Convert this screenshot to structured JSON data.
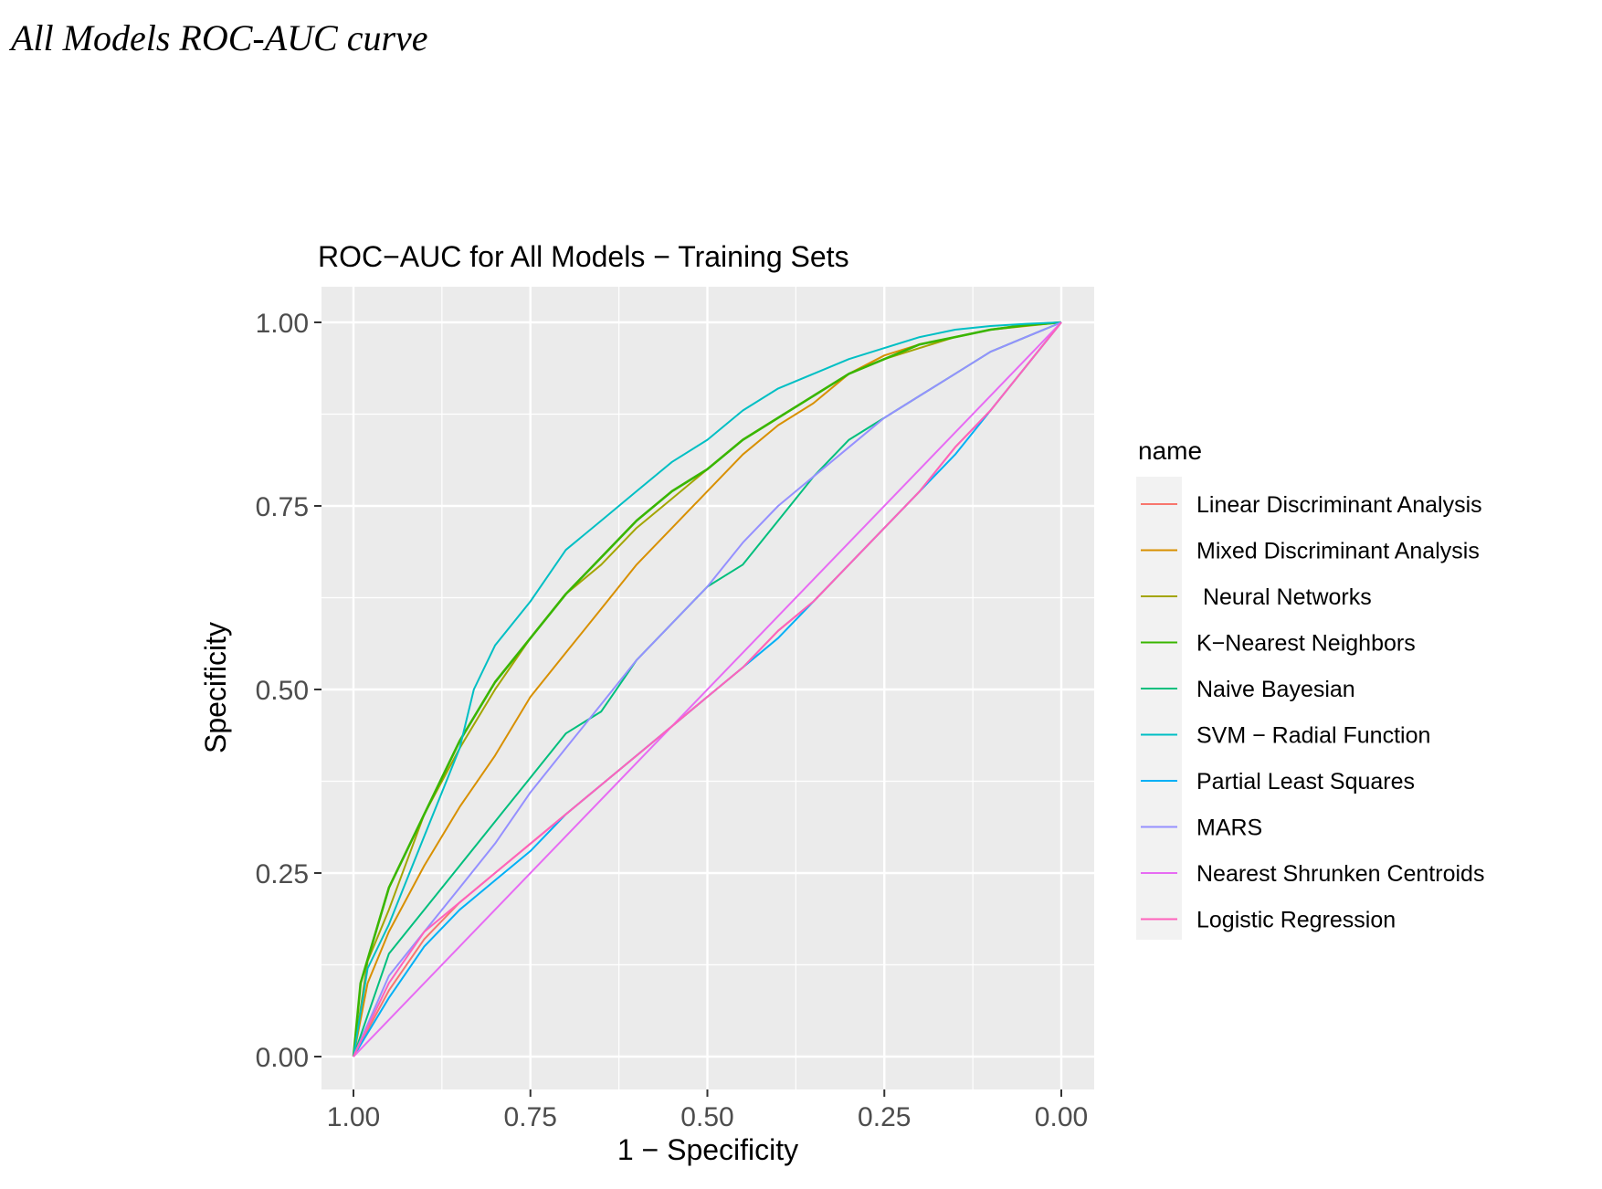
{
  "caption": "All Models ROC-AUC curve",
  "chart_data": {
    "type": "line",
    "title": "ROC−AUC for All Models − Training Sets",
    "xlabel": "1 − Specificity",
    "ylabel": "Specificity",
    "xlim": [
      1.0,
      0.0
    ],
    "ylim": [
      0.0,
      1.0
    ],
    "x_reversed": true,
    "xticks": [
      1.0,
      0.75,
      0.5,
      0.25,
      0.0
    ],
    "xtick_labels": [
      "1.00",
      "0.75",
      "0.50",
      "0.25",
      "0.00"
    ],
    "yticks": [
      0.0,
      0.25,
      0.5,
      0.75,
      1.0
    ],
    "ytick_labels": [
      "0.00",
      "0.25",
      "0.50",
      "0.75",
      "1.00"
    ],
    "grid": true,
    "legend_title": "name",
    "legend_position": "right",
    "series": [
      {
        "name": "Linear Discriminant Analysis",
        "color": "#F8766D",
        "x": [
          1.0,
          0.95,
          0.9,
          0.85,
          0.8,
          0.75,
          0.7,
          0.65,
          0.6,
          0.55,
          0.5,
          0.45,
          0.4,
          0.35,
          0.3,
          0.25,
          0.2,
          0.15,
          0.1,
          0.05,
          0.0
        ],
        "y": [
          0.0,
          0.09,
          0.16,
          0.21,
          0.25,
          0.29,
          0.33,
          0.37,
          0.41,
          0.45,
          0.49,
          0.53,
          0.58,
          0.62,
          0.67,
          0.72,
          0.77,
          0.83,
          0.88,
          0.94,
          1.0
        ]
      },
      {
        "name": "Mixed Discriminant Analysis",
        "color": "#D89000",
        "x": [
          1.0,
          0.98,
          0.95,
          0.9,
          0.85,
          0.8,
          0.75,
          0.7,
          0.65,
          0.6,
          0.55,
          0.5,
          0.45,
          0.4,
          0.35,
          0.3,
          0.25,
          0.2,
          0.15,
          0.1,
          0.05,
          0.0
        ],
        "y": [
          0.0,
          0.1,
          0.17,
          0.26,
          0.34,
          0.41,
          0.49,
          0.55,
          0.61,
          0.67,
          0.72,
          0.77,
          0.82,
          0.86,
          0.89,
          0.93,
          0.955,
          0.97,
          0.98,
          0.99,
          0.995,
          1.0
        ]
      },
      {
        "name": " Neural Networks",
        "color": "#A3A500",
        "x": [
          1.0,
          0.98,
          0.95,
          0.9,
          0.85,
          0.8,
          0.75,
          0.7,
          0.65,
          0.6,
          0.55,
          0.5,
          0.45,
          0.4,
          0.35,
          0.3,
          0.25,
          0.2,
          0.15,
          0.1,
          0.05,
          0.0
        ],
        "y": [
          0.0,
          0.13,
          0.2,
          0.33,
          0.42,
          0.5,
          0.57,
          0.63,
          0.67,
          0.72,
          0.76,
          0.8,
          0.84,
          0.87,
          0.9,
          0.93,
          0.95,
          0.965,
          0.98,
          0.99,
          0.997,
          1.0
        ]
      },
      {
        "name": "K−Nearest Neighbors",
        "color": "#39B600",
        "x": [
          1.0,
          0.99,
          0.95,
          0.9,
          0.85,
          0.8,
          0.75,
          0.7,
          0.65,
          0.6,
          0.55,
          0.5,
          0.45,
          0.4,
          0.35,
          0.3,
          0.25,
          0.2,
          0.15,
          0.1,
          0.05,
          0.0
        ],
        "y": [
          0.0,
          0.1,
          0.23,
          0.33,
          0.43,
          0.51,
          0.57,
          0.63,
          0.68,
          0.73,
          0.77,
          0.8,
          0.84,
          0.87,
          0.9,
          0.93,
          0.95,
          0.97,
          0.98,
          0.99,
          0.996,
          1.0
        ]
      },
      {
        "name": "Naive Bayesian",
        "color": "#00BF7D",
        "x": [
          1.0,
          0.95,
          0.9,
          0.85,
          0.8,
          0.75,
          0.7,
          0.65,
          0.6,
          0.55,
          0.5,
          0.45,
          0.4,
          0.35,
          0.3,
          0.25,
          0.2,
          0.15,
          0.1,
          0.05,
          0.0
        ],
        "y": [
          0.0,
          0.14,
          0.2,
          0.26,
          0.32,
          0.38,
          0.44,
          0.47,
          0.54,
          0.59,
          0.64,
          0.67,
          0.73,
          0.79,
          0.84,
          0.87,
          0.9,
          0.93,
          0.96,
          0.98,
          1.0
        ]
      },
      {
        "name": "SVM − Radial Function",
        "color": "#00BFC4",
        "x": [
          1.0,
          0.98,
          0.95,
          0.9,
          0.85,
          0.83,
          0.8,
          0.75,
          0.7,
          0.65,
          0.6,
          0.55,
          0.5,
          0.45,
          0.4,
          0.35,
          0.3,
          0.25,
          0.2,
          0.15,
          0.1,
          0.05,
          0.0
        ],
        "y": [
          0.0,
          0.12,
          0.18,
          0.3,
          0.42,
          0.5,
          0.56,
          0.62,
          0.69,
          0.73,
          0.77,
          0.81,
          0.84,
          0.88,
          0.91,
          0.93,
          0.95,
          0.965,
          0.98,
          0.99,
          0.995,
          0.998,
          1.0
        ]
      },
      {
        "name": "Partial Least Squares",
        "color": "#00B0F6",
        "x": [
          1.0,
          0.95,
          0.9,
          0.85,
          0.8,
          0.75,
          0.7,
          0.65,
          0.6,
          0.55,
          0.5,
          0.45,
          0.4,
          0.35,
          0.3,
          0.25,
          0.2,
          0.15,
          0.1,
          0.05,
          0.0
        ],
        "y": [
          0.0,
          0.08,
          0.15,
          0.2,
          0.24,
          0.28,
          0.33,
          0.37,
          0.41,
          0.45,
          0.49,
          0.53,
          0.57,
          0.62,
          0.67,
          0.72,
          0.77,
          0.82,
          0.88,
          0.94,
          1.0
        ]
      },
      {
        "name": "MARS",
        "color": "#9590FF",
        "x": [
          1.0,
          0.95,
          0.9,
          0.85,
          0.8,
          0.75,
          0.7,
          0.65,
          0.6,
          0.55,
          0.5,
          0.45,
          0.4,
          0.35,
          0.3,
          0.25,
          0.2,
          0.15,
          0.1,
          0.05,
          0.0
        ],
        "y": [
          0.0,
          0.11,
          0.17,
          0.23,
          0.29,
          0.36,
          0.42,
          0.48,
          0.54,
          0.59,
          0.64,
          0.7,
          0.75,
          0.79,
          0.83,
          0.87,
          0.9,
          0.93,
          0.96,
          0.98,
          1.0
        ]
      },
      {
        "name": "Nearest Shrunken Centroids",
        "color": "#E76BF3",
        "x": [
          1.0,
          0.0
        ],
        "y": [
          0.0,
          1.0
        ]
      },
      {
        "name": "Logistic Regression",
        "color": "#FF62BC",
        "x": [
          1.0,
          0.95,
          0.9,
          0.85,
          0.8,
          0.75,
          0.7,
          0.65,
          0.6,
          0.55,
          0.5,
          0.45,
          0.4,
          0.35,
          0.3,
          0.25,
          0.2,
          0.15,
          0.1,
          0.05,
          0.0
        ],
        "y": [
          0.0,
          0.1,
          0.17,
          0.21,
          0.25,
          0.29,
          0.33,
          0.37,
          0.41,
          0.45,
          0.49,
          0.53,
          0.58,
          0.62,
          0.67,
          0.72,
          0.77,
          0.83,
          0.88,
          0.94,
          1.0
        ]
      }
    ]
  }
}
